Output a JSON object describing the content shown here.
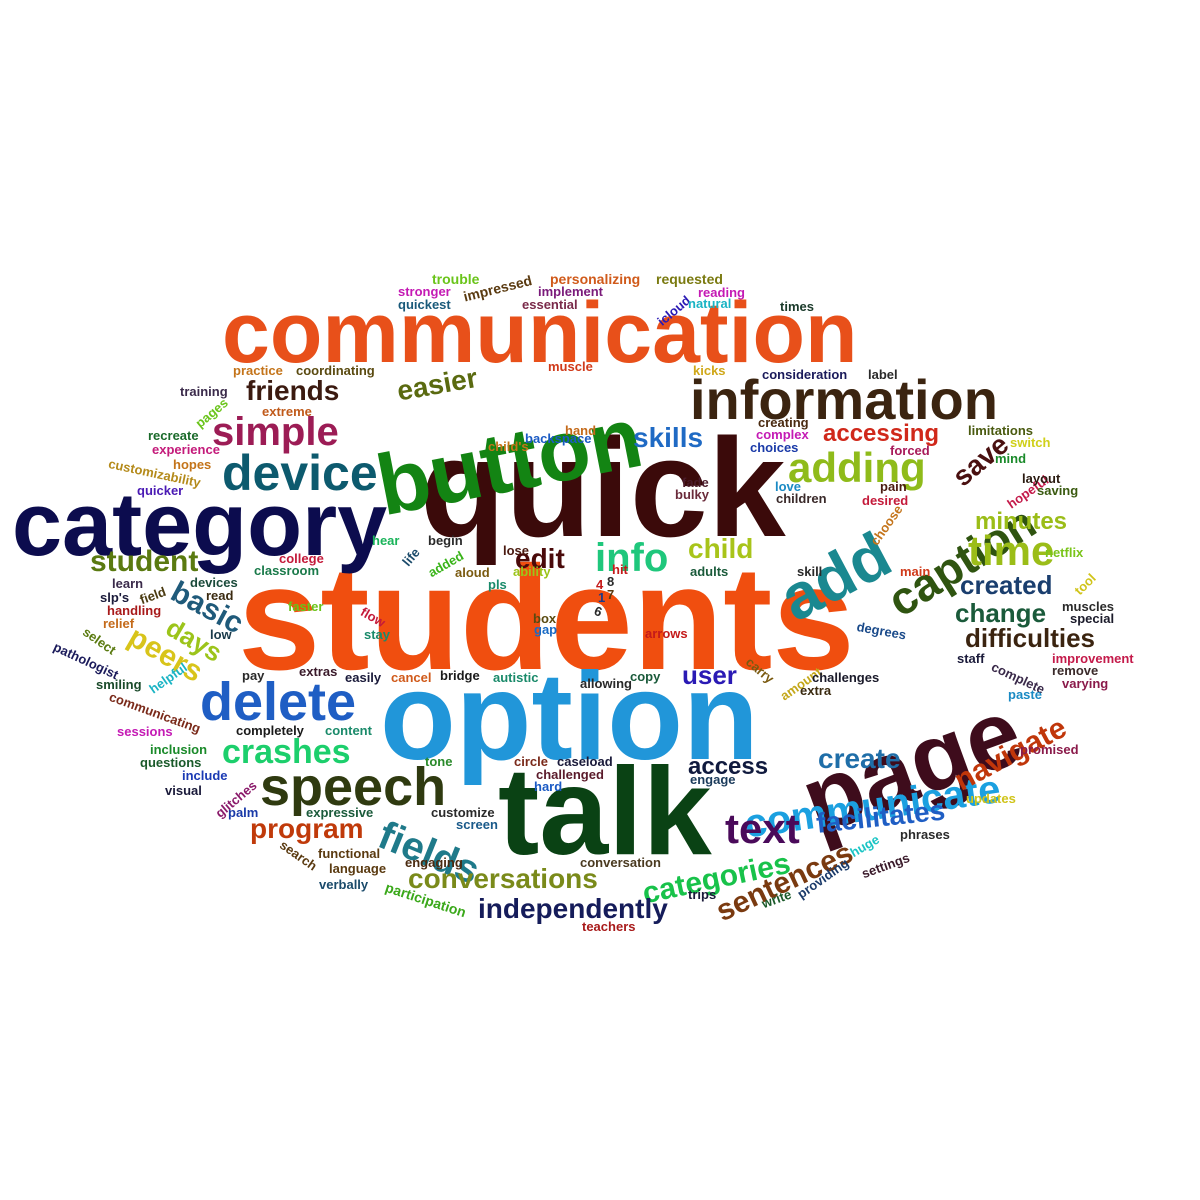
{
  "words": [
    {
      "text": "students",
      "color": "#f04e0f"
    },
    {
      "text": "quick",
      "color": "#3b0a0a"
    },
    {
      "text": "option",
      "color": "#2196d9"
    },
    {
      "text": "talk",
      "color": "#0a4214"
    },
    {
      "text": "communication",
      "color": "#e8501a"
    },
    {
      "text": "category",
      "color": "#0c0c4e"
    },
    {
      "text": "button",
      "color": "#138413"
    },
    {
      "text": "page",
      "color": "#3e0c1c"
    },
    {
      "text": "information",
      "color": "#3b2410"
    },
    {
      "text": "device",
      "color": "#0d5a6e"
    },
    {
      "text": "delete",
      "color": "#1f5ec4"
    },
    {
      "text": "speech",
      "color": "#2f3a10"
    },
    {
      "text": "add",
      "color": "#1a8890"
    },
    {
      "text": "caption",
      "color": "#2f5410"
    },
    {
      "text": "simple",
      "color": "#9c1c55"
    },
    {
      "text": "adding",
      "color": "#8fbb1a"
    },
    {
      "text": "time",
      "color": "#9bbd18"
    },
    {
      "text": "communicate",
      "color": "#1ba0e0"
    },
    {
      "text": "fields",
      "color": "#1f7a8a"
    },
    {
      "text": "text",
      "color": "#4a0a5a"
    },
    {
      "text": "crashes",
      "color": "#1ccf6c"
    },
    {
      "text": "navigate",
      "color": "#c0360a"
    },
    {
      "text": "info",
      "color": "#1fc77c"
    },
    {
      "text": "categories",
      "color": "#18c24a"
    },
    {
      "text": "conversations",
      "color": "#7a8a1a"
    },
    {
      "text": "independently",
      "color": "#151c5a"
    },
    {
      "text": "sentences",
      "color": "#7a3a10"
    },
    {
      "text": "facilitates",
      "color": "#1f5ec4"
    },
    {
      "text": "create",
      "color": "#1f6ea8"
    },
    {
      "text": "program",
      "color": "#c03a0a"
    },
    {
      "text": "friends",
      "color": "#3b1a10"
    },
    {
      "text": "easier",
      "color": "#5a6a10"
    },
    {
      "text": "skills",
      "color": "#1f6ac4"
    },
    {
      "text": "student",
      "color": "#5a7a10"
    },
    {
      "text": "basic",
      "color": "#1f5a7a"
    },
    {
      "text": "peers",
      "color": "#d8c41a"
    },
    {
      "text": "days",
      "color": "#9cc41a"
    },
    {
      "text": "edit",
      "color": "#4a0a0a"
    },
    {
      "text": "child",
      "color": "#a8c41a"
    },
    {
      "text": "save",
      "color": "#4a1010"
    },
    {
      "text": "minutes",
      "color": "#9bbd18"
    },
    {
      "text": "created",
      "color": "#1a3e6e"
    },
    {
      "text": "change",
      "color": "#1a5a3a"
    },
    {
      "text": "difficulties",
      "color": "#3b2410"
    },
    {
      "text": "user",
      "color": "#2a1ab4"
    },
    {
      "text": "access",
      "color": "#101a3e"
    },
    {
      "text": "accessing",
      "color": "#d0281a"
    },
    {
      "text": "conversation",
      "color": "#4a3a20"
    },
    {
      "text": "participation",
      "color": "#3aa81a"
    },
    {
      "text": "teachers",
      "color": "#a81a1a"
    },
    {
      "text": "trouble",
      "color": "#6ac41a"
    },
    {
      "text": "impressed",
      "color": "#5a3a10"
    },
    {
      "text": "personalizing",
      "color": "#d05a1a"
    },
    {
      "text": "requested",
      "color": "#7a7a10"
    },
    {
      "text": "stronger",
      "color": "#c41ab4"
    },
    {
      "text": "implement",
      "color": "#7a1a7a"
    },
    {
      "text": "reading",
      "color": "#c41ab4"
    },
    {
      "text": "quickest",
      "color": "#1a5a7a"
    },
    {
      "text": "essential",
      "color": "#7a2a4a"
    },
    {
      "text": "icloud",
      "color": "#2a1ab4"
    },
    {
      "text": "natural",
      "color": "#1ab4c4"
    },
    {
      "text": "times",
      "color": "#1a3a2a"
    },
    {
      "text": "muscle",
      "color": "#d03a1a"
    },
    {
      "text": "practice",
      "color": "#c4741a"
    },
    {
      "text": "coordinating",
      "color": "#5a4a10"
    },
    {
      "text": "kicks",
      "color": "#d0a81a"
    },
    {
      "text": "consideration",
      "color": "#1a1a5a"
    },
    {
      "text": "label",
      "color": "#2a2a2a"
    },
    {
      "text": "training",
      "color": "#3a2a4a"
    },
    {
      "text": "pages",
      "color": "#6ac41a"
    },
    {
      "text": "extreme",
      "color": "#c05a1a"
    },
    {
      "text": "recreate",
      "color": "#1a6a2a"
    },
    {
      "text": "hand",
      "color": "#c46a1a"
    },
    {
      "text": "backspace",
      "color": "#1a5ac4"
    },
    {
      "text": "child's",
      "color": "#c4741a"
    },
    {
      "text": "creating",
      "color": "#4a2a10"
    },
    {
      "text": "complex",
      "color": "#c41ab4"
    },
    {
      "text": "choices",
      "color": "#1a3aa8"
    },
    {
      "text": "limitations",
      "color": "#4a5a10"
    },
    {
      "text": "switch",
      "color": "#d0d01a"
    },
    {
      "text": "mind",
      "color": "#1a8a2a"
    },
    {
      "text": "forced",
      "color": "#a81a5a"
    },
    {
      "text": "experience",
      "color": "#c41a7a"
    },
    {
      "text": "customizability",
      "color": "#b48a1a"
    },
    {
      "text": "hopes",
      "color": "#c4741a"
    },
    {
      "text": "quicker",
      "color": "#4a1ab4"
    },
    {
      "text": "fade",
      "color": "#4a1a2a"
    },
    {
      "text": "bulky",
      "color": "#6a2a3a"
    },
    {
      "text": "love",
      "color": "#1a8ac4"
    },
    {
      "text": "pain",
      "color": "#4a1a10"
    },
    {
      "text": "desired",
      "color": "#c41a3a"
    },
    {
      "text": "children",
      "color": "#3a2a2a"
    },
    {
      "text": "hopeful",
      "color": "#c41a4a"
    },
    {
      "text": "saving",
      "color": "#3a5a10"
    },
    {
      "text": "layout",
      "color": "#2a1a10"
    },
    {
      "text": "choose",
      "color": "#c4741a"
    },
    {
      "text": "hear",
      "color": "#1ab45a"
    },
    {
      "text": "begin",
      "color": "#2a2a2a"
    },
    {
      "text": "lose",
      "color": "#4a1a10"
    },
    {
      "text": "college",
      "color": "#c41a3a"
    },
    {
      "text": "classroom",
      "color": "#1a7a4a"
    },
    {
      "text": "life",
      "color": "#1a4a6a"
    },
    {
      "text": "added",
      "color": "#3ab41a"
    },
    {
      "text": "aloud",
      "color": "#7a5a10"
    },
    {
      "text": "pls",
      "color": "#1a8a6a"
    },
    {
      "text": "ability",
      "color": "#9cc41a"
    },
    {
      "text": "adults",
      "color": "#1a5a3a"
    },
    {
      "text": "skill",
      "color": "#2a2a2a"
    },
    {
      "text": "main",
      "color": "#d03a1a"
    },
    {
      "text": "netflix",
      "color": "#7ac41a"
    },
    {
      "text": "tool",
      "color": "#d0c41a"
    },
    {
      "text": "learn",
      "color": "#3a2a4a"
    },
    {
      "text": "devices",
      "color": "#1a4a3a"
    },
    {
      "text": "read",
      "color": "#3a2a10"
    },
    {
      "text": "slp's",
      "color": "#1a1a3a"
    },
    {
      "text": "field",
      "color": "#4a3a10"
    },
    {
      "text": "handling",
      "color": "#a81a1a"
    },
    {
      "text": "relief",
      "color": "#c46a1a"
    },
    {
      "text": "select",
      "color": "#5a7a10"
    },
    {
      "text": "faster",
      "color": "#6ac41a"
    },
    {
      "text": "flow",
      "color": "#c41a3a"
    },
    {
      "text": "stay",
      "color": "#1a8a6a"
    },
    {
      "text": "box",
      "color": "#5a4a10"
    },
    {
      "text": "gap",
      "color": "#1a6ac4"
    },
    {
      "text": "arrows",
      "color": "#c41a1a"
    },
    {
      "text": "degrees",
      "color": "#1a4a8a"
    },
    {
      "text": "muscles",
      "color": "#2a2a2a"
    },
    {
      "text": "special",
      "color": "#1a1a2a"
    },
    {
      "text": "low",
      "color": "#1a3a4a"
    },
    {
      "text": "pathologist",
      "color": "#1a1a5a"
    },
    {
      "text": "helpful",
      "color": "#1ab4c4"
    },
    {
      "text": "pay",
      "color": "#2a2a2a"
    },
    {
      "text": "extras",
      "color": "#3a1a2a"
    },
    {
      "text": "easily",
      "color": "#1a1a3a"
    },
    {
      "text": "cancel",
      "color": "#d05a1a"
    },
    {
      "text": "bridge",
      "color": "#1a1a1a"
    },
    {
      "text": "copy",
      "color": "#1a5a3a"
    },
    {
      "text": "autistic",
      "color": "#1a8a6a"
    },
    {
      "text": "allowing",
      "color": "#2a2a2a"
    },
    {
      "text": "carry",
      "color": "#7a5a10"
    },
    {
      "text": "amount",
      "color": "#c4a81a"
    },
    {
      "text": "challenges",
      "color": "#1a1a2a"
    },
    {
      "text": "extra",
      "color": "#3a2a10"
    },
    {
      "text": "staff",
      "color": "#1a1a3a"
    },
    {
      "text": "complete",
      "color": "#3a2a4a"
    },
    {
      "text": "improvement",
      "color": "#c41a4a"
    },
    {
      "text": "remove",
      "color": "#3a2a2a"
    },
    {
      "text": "varying",
      "color": "#8a1a4a"
    },
    {
      "text": "paste",
      "color": "#1a8ac4"
    },
    {
      "text": "smiling",
      "color": "#1a4a2a"
    },
    {
      "text": "communicating",
      "color": "#7a2a1a"
    },
    {
      "text": "sessions",
      "color": "#c41ab4"
    },
    {
      "text": "completely",
      "color": "#1a1a1a"
    },
    {
      "text": "content",
      "color": "#1a8a6a"
    },
    {
      "text": "inclusion",
      "color": "#1a8a2a"
    },
    {
      "text": "questions",
      "color": "#1a5a2a"
    },
    {
      "text": "include",
      "color": "#1a3ab4"
    },
    {
      "text": "visual",
      "color": "#1a1a3a"
    },
    {
      "text": "glitches",
      "color": "#8a1a6a"
    },
    {
      "text": "palm",
      "color": "#1a3aa8"
    },
    {
      "text": "expressive",
      "color": "#1a5a3a"
    },
    {
      "text": "circle",
      "color": "#7a2a1a"
    },
    {
      "text": "caseload",
      "color": "#1a1a3a"
    },
    {
      "text": "challenged",
      "color": "#5a1a2a"
    },
    {
      "text": "hard",
      "color": "#1a5ac4"
    },
    {
      "text": "engage",
      "color": "#1a3a5a"
    },
    {
      "text": "tone",
      "color": "#2a8a2a"
    },
    {
      "text": "screen",
      "color": "#1a5a8a"
    },
    {
      "text": "customize",
      "color": "#2a2a2a"
    },
    {
      "text": "search",
      "color": "#5a3a10"
    },
    {
      "text": "functional",
      "color": "#5a3a10"
    },
    {
      "text": "language",
      "color": "#5a3a10"
    },
    {
      "text": "engaging",
      "color": "#4a2a10"
    },
    {
      "text": "verbally",
      "color": "#1a4a6a"
    },
    {
      "text": "promised",
      "color": "#8a1a4a"
    },
    {
      "text": "updates",
      "color": "#d0c41a"
    },
    {
      "text": "phrases",
      "color": "#2a2a2a"
    },
    {
      "text": "huge",
      "color": "#1ac4c4"
    },
    {
      "text": "providing",
      "color": "#1a3a6a"
    },
    {
      "text": "settings",
      "color": "#3a1a2a"
    },
    {
      "text": "write",
      "color": "#1a5a2a"
    },
    {
      "text": "trips",
      "color": "#1a1a3a"
    },
    {
      "text": "ability",
      "color": "#9cc41a"
    },
    {
      "text": "hit",
      "color": "#c41a1a"
    },
    {
      "text": "4",
      "color": "#c41a1a"
    },
    {
      "text": "8",
      "color": "#2a2a2a"
    },
    {
      "text": "1",
      "color": "#1a3a8a"
    },
    {
      "text": "7",
      "color": "#5a3a10"
    },
    {
      "text": "6",
      "color": "#2a2a2a"
    }
  ]
}
